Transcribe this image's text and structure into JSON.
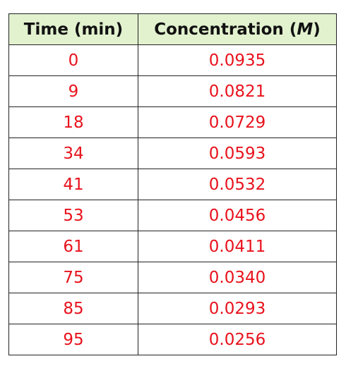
{
  "chart_data": {
    "type": "table",
    "columns": [
      "Time (min)",
      "Concentration"
    ],
    "concentration_unit": "M",
    "rows": [
      [
        "0",
        "0.0935"
      ],
      [
        "9",
        "0.0821"
      ],
      [
        "18",
        "0.0729"
      ],
      [
        "34",
        "0.0593"
      ],
      [
        "41",
        "0.0532"
      ],
      [
        "53",
        "0.0456"
      ],
      [
        "61",
        "0.0411"
      ],
      [
        "75",
        "0.0340"
      ],
      [
        "85",
        "0.0293"
      ],
      [
        "95",
        "0.0256"
      ]
    ]
  },
  "colors": {
    "header_background": "#e2f2cf",
    "value_text": "#e8121c",
    "border": "#222222"
  }
}
